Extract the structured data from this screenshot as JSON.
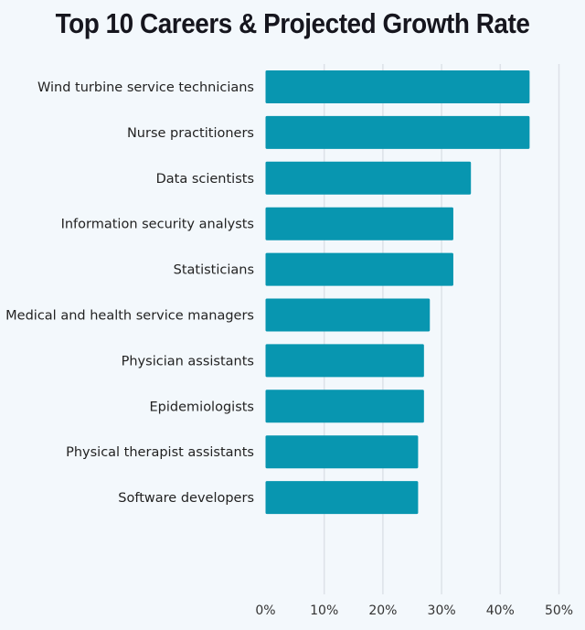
{
  "chart_data": {
    "type": "bar",
    "orientation": "horizontal",
    "title": "Top 10 Careers & Projected Growth Rate",
    "categories": [
      "Wind turbine service technicians",
      "Nurse practitioners",
      "Data scientists",
      "Information security analysts",
      "Statisticians",
      "Medical and health service managers",
      "Physician assistants",
      "Epidemiologists",
      "Physical therapist assistants",
      "Software developers"
    ],
    "values": [
      45,
      45,
      35,
      32,
      32,
      28,
      27,
      27,
      26,
      26
    ],
    "xlim": [
      0,
      50
    ],
    "xticks": [
      "0%",
      "10%",
      "20%",
      "30%",
      "40%",
      "50%"
    ],
    "grid": true,
    "bar_color": "#0896b0"
  }
}
